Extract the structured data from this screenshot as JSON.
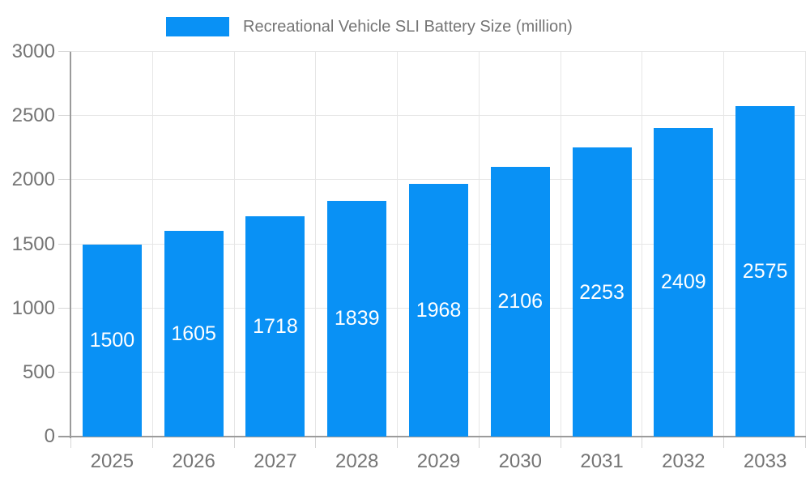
{
  "legend": {
    "label": "Recreational Vehicle SLI Battery Size (million)"
  },
  "chart_data": {
    "type": "bar",
    "title": "Recreational Vehicle SLI Battery Size (million)",
    "categories": [
      "2025",
      "2026",
      "2027",
      "2028",
      "2029",
      "2030",
      "2031",
      "2032",
      "2033"
    ],
    "values": [
      1500,
      1605,
      1718,
      1839,
      1968,
      2106,
      2253,
      2409,
      2575
    ],
    "series": [
      {
        "name": "Recreational Vehicle SLI Battery Size (million)",
        "values": [
          1500,
          1605,
          1718,
          1839,
          1968,
          2106,
          2253,
          2409,
          2575
        ]
      }
    ],
    "xlabel": "",
    "ylabel": "",
    "ylim": [
      0,
      3000
    ],
    "yticks": [
      0,
      500,
      1000,
      1500,
      2000,
      2500,
      3000
    ],
    "grid": true,
    "legend_position": "top",
    "bar_labels_position": "inside-center"
  },
  "colors": {
    "bar": "#0991f5",
    "bar_label": "#ffffff",
    "axis_text": "#757575",
    "grid_line": "#e6e6e6",
    "tick_line": "#d6d6d6",
    "axis_line": "#9b9b9b",
    "background": "#ffffff"
  }
}
